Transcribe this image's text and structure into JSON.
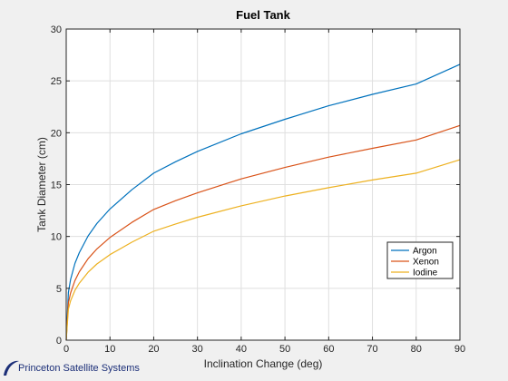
{
  "chart_data": {
    "type": "line",
    "title": "Fuel Tank",
    "xlabel": "Inclination Change (deg)",
    "ylabel": "Tank Diameter (cm)",
    "xlim": [
      0,
      90
    ],
    "ylim": [
      0,
      30
    ],
    "xticks": [
      0,
      10,
      20,
      30,
      40,
      50,
      60,
      70,
      80,
      90
    ],
    "yticks": [
      0,
      5,
      10,
      15,
      20,
      25,
      30
    ],
    "grid": true,
    "legend_position": "lower-right",
    "series": [
      {
        "name": "Argon",
        "color": "#0072bd",
        "x": [
          0,
          0.5,
          1,
          2,
          3,
          5,
          7,
          10,
          15,
          20,
          25,
          30,
          40,
          50,
          60,
          70,
          80,
          90
        ],
        "values": [
          0,
          4.6,
          5.85,
          7.4,
          8.45,
          10.05,
          11.25,
          12.65,
          14.5,
          16.1,
          17.2,
          18.2,
          19.9,
          21.3,
          22.6,
          23.7,
          24.7,
          26.6
        ]
      },
      {
        "name": "Xenon",
        "color": "#d95319",
        "x": [
          0,
          0.5,
          1,
          2,
          3,
          5,
          7,
          10,
          15,
          20,
          25,
          30,
          40,
          50,
          60,
          70,
          80,
          90
        ],
        "values": [
          0,
          3.6,
          4.55,
          5.75,
          6.6,
          7.85,
          8.8,
          9.9,
          11.35,
          12.6,
          13.45,
          14.2,
          15.55,
          16.65,
          17.65,
          18.5,
          19.3,
          20.7
        ]
      },
      {
        "name": "Iodine",
        "color": "#edb120",
        "x": [
          0,
          0.5,
          1,
          2,
          3,
          5,
          7,
          10,
          15,
          20,
          25,
          30,
          40,
          50,
          60,
          70,
          80,
          90
        ],
        "values": [
          0,
          3.0,
          3.8,
          4.8,
          5.5,
          6.55,
          7.35,
          8.25,
          9.45,
          10.5,
          11.2,
          11.85,
          12.95,
          13.9,
          14.7,
          15.45,
          16.1,
          17.4
        ]
      }
    ]
  },
  "footer": {
    "logo_text": "Princeton Satellite Systems"
  }
}
